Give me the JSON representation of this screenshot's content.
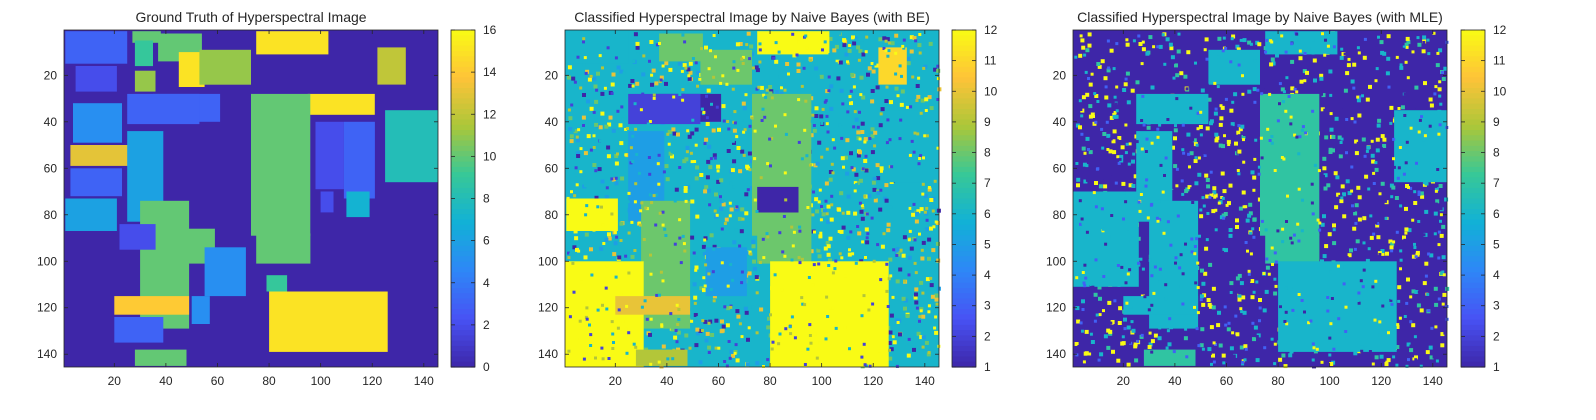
{
  "chart_data": [
    {
      "type": "heatmap",
      "title": "Ground Truth of Hyperspectral Image",
      "xlabel": "",
      "ylabel": "",
      "xlim": [
        0.5,
        145.5
      ],
      "ylim": [
        0.5,
        145.5
      ],
      "y_reversed": true,
      "xticks": [
        20,
        40,
        60,
        80,
        100,
        120,
        140
      ],
      "yticks": [
        20,
        40,
        60,
        80,
        100,
        120,
        140
      ],
      "grid": false,
      "colormap": "parula",
      "clim": [
        0,
        16
      ],
      "colorbar_ticks": [
        0,
        2,
        4,
        6,
        8,
        10,
        12,
        14,
        16
      ],
      "background_value": 0,
      "regions": [
        {
          "x": [
            1,
            24
          ],
          "y": [
            1,
            14
          ],
          "value": 3
        },
        {
          "x": [
            27,
            37
          ],
          "y": [
            1,
            5
          ],
          "value": 10
        },
        {
          "x": [
            37,
            53
          ],
          "y": [
            2,
            13
          ],
          "value": 10
        },
        {
          "x": [
            28,
            34
          ],
          "y": [
            5,
            15
          ],
          "value": 9
        },
        {
          "x": [
            45,
            54
          ],
          "y": [
            10,
            24
          ],
          "value": 15
        },
        {
          "x": [
            53,
            72
          ],
          "y": [
            9,
            23
          ],
          "value": 11
        },
        {
          "x": [
            75,
            102
          ],
          "y": [
            1,
            10
          ],
          "value": 15
        },
        {
          "x": [
            122,
            132
          ],
          "y": [
            8,
            23
          ],
          "value": 12
        },
        {
          "x": [
            5,
            20
          ],
          "y": [
            16,
            26
          ],
          "value": 2
        },
        {
          "x": [
            28,
            35
          ],
          "y": [
            18,
            26
          ],
          "value": 11
        },
        {
          "x": [
            35,
            60
          ],
          "y": [
            28,
            39
          ],
          "value": 3
        },
        {
          "x": [
            95,
            120
          ],
          "y": [
            28,
            36
          ],
          "value": 15
        },
        {
          "x": [
            4,
            22
          ],
          "y": [
            32,
            48
          ],
          "value": 5
        },
        {
          "x": [
            25,
            52
          ],
          "y": [
            28,
            40
          ],
          "value": 3
        },
        {
          "x": [
            73,
            95
          ],
          "y": [
            28,
            88
          ],
          "value": 10
        },
        {
          "x": [
            98,
            108
          ],
          "y": [
            40,
            68
          ],
          "value": 2
        },
        {
          "x": [
            109,
            120
          ],
          "y": [
            40,
            72
          ],
          "value": 3
        },
        {
          "x": [
            125,
            145
          ],
          "y": [
            35,
            65
          ],
          "value": 8
        },
        {
          "x": [
            3,
            25
          ],
          "y": [
            50,
            58
          ],
          "value": 13
        },
        {
          "x": [
            3,
            22
          ],
          "y": [
            60,
            71
          ],
          "value": 3
        },
        {
          "x": [
            25,
            38
          ],
          "y": [
            44,
            82
          ],
          "value": 6
        },
        {
          "x": [
            110,
            118
          ],
          "y": [
            70,
            80
          ],
          "value": 7
        },
        {
          "x": [
            100,
            104
          ],
          "y": [
            70,
            78
          ],
          "value": 2
        },
        {
          "x": [
            1,
            20
          ],
          "y": [
            73,
            86
          ],
          "value": 6
        },
        {
          "x": [
            30,
            48
          ],
          "y": [
            74,
            128
          ],
          "value": 10
        },
        {
          "x": [
            48,
            58
          ],
          "y": [
            86,
            100
          ],
          "value": 10
        },
        {
          "x": [
            22,
            35
          ],
          "y": [
            84,
            94
          ],
          "value": 2
        },
        {
          "x": [
            55,
            70
          ],
          "y": [
            94,
            114
          ],
          "value": 5
        },
        {
          "x": [
            75,
            95
          ],
          "y": [
            88,
            100
          ],
          "value": 10
        },
        {
          "x": [
            79,
            86
          ],
          "y": [
            106,
            112
          ],
          "value": 9
        },
        {
          "x": [
            20,
            48
          ],
          "y": [
            115,
            122
          ],
          "value": 14
        },
        {
          "x": [
            20,
            38
          ],
          "y": [
            124,
            134
          ],
          "value": 3
        },
        {
          "x": [
            50,
            56
          ],
          "y": [
            115,
            126
          ],
          "value": 5
        },
        {
          "x": [
            80,
            125
          ],
          "y": [
            113,
            138
          ],
          "value": 15
        },
        {
          "x": [
            28,
            47
          ],
          "y": [
            138,
            144
          ],
          "value": 10
        }
      ]
    },
    {
      "type": "heatmap",
      "title": "Classified Hyperspectral Image by Naive Bayes (with BE)",
      "xlabel": "",
      "ylabel": "",
      "xlim": [
        0.5,
        145.5
      ],
      "ylim": [
        0.5,
        145.5
      ],
      "y_reversed": true,
      "xticks": [
        20,
        40,
        60,
        80,
        100,
        120,
        140
      ],
      "yticks": [
        20,
        40,
        60,
        80,
        100,
        120,
        140
      ],
      "grid": false,
      "colormap": "parula",
      "clim": [
        1,
        12
      ],
      "colorbar_ticks": [
        1,
        2,
        3,
        4,
        5,
        6,
        7,
        8,
        9,
        10,
        11,
        12
      ],
      "background_value": 6,
      "regions": [
        {
          "x": [
            1,
            24
          ],
          "y": [
            1,
            14
          ],
          "value": 6
        },
        {
          "x": [
            37,
            53
          ],
          "y": [
            2,
            13
          ],
          "value": 8
        },
        {
          "x": [
            53,
            72
          ],
          "y": [
            9,
            23
          ],
          "value": 8
        },
        {
          "x": [
            75,
            102
          ],
          "y": [
            1,
            10
          ],
          "value": 12
        },
        {
          "x": [
            122,
            132
          ],
          "y": [
            8,
            23
          ],
          "value": 11
        },
        {
          "x": [
            35,
            60
          ],
          "y": [
            28,
            39
          ],
          "value": 1
        },
        {
          "x": [
            25,
            52
          ],
          "y": [
            28,
            40
          ],
          "value": 2
        },
        {
          "x": [
            73,
            95
          ],
          "y": [
            28,
            88
          ],
          "value": 8
        },
        {
          "x": [
            125,
            145
          ],
          "y": [
            35,
            65
          ],
          "value": 6
        },
        {
          "x": [
            25,
            38
          ],
          "y": [
            44,
            82
          ],
          "value": 5
        },
        {
          "x": [
            1,
            20
          ],
          "y": [
            73,
            86
          ],
          "value": 12
        },
        {
          "x": [
            30,
            48
          ],
          "y": [
            74,
            128
          ],
          "value": 8
        },
        {
          "x": [
            75,
            95
          ],
          "y": [
            88,
            100
          ],
          "value": 8
        },
        {
          "x": [
            75,
            90
          ],
          "y": [
            68,
            78
          ],
          "value": 1
        },
        {
          "x": [
            80,
            125
          ],
          "y": [
            100,
            145
          ],
          "value": 12
        },
        {
          "x": [
            0,
            30
          ],
          "y": [
            100,
            145
          ],
          "value": 12
        },
        {
          "x": [
            20,
            48
          ],
          "y": [
            115,
            122
          ],
          "value": 10
        },
        {
          "x": [
            55,
            70
          ],
          "y": [
            94,
            114
          ],
          "value": 5
        },
        {
          "x": [
            28,
            47
          ],
          "y": [
            138,
            144
          ],
          "value": 9
        }
      ]
    },
    {
      "type": "heatmap",
      "title": "Classified Hyperspectral Image by Naive Bayes (with MLE)",
      "xlabel": "",
      "ylabel": "",
      "xlim": [
        0.5,
        145.5
      ],
      "ylim": [
        0.5,
        145.5
      ],
      "y_reversed": true,
      "xticks": [
        20,
        40,
        60,
        80,
        100,
        120,
        140
      ],
      "yticks": [
        20,
        40,
        60,
        80,
        100,
        120,
        140
      ],
      "grid": false,
      "colormap": "parula",
      "clim": [
        1,
        12
      ],
      "colorbar_ticks": [
        1,
        2,
        3,
        4,
        5,
        6,
        7,
        8,
        9,
        10,
        11,
        12
      ],
      "background_value": 1,
      "regions": [
        {
          "x": [
            75,
            102
          ],
          "y": [
            1,
            10
          ],
          "value": 6
        },
        {
          "x": [
            53,
            72
          ],
          "y": [
            9,
            23
          ],
          "value": 6
        },
        {
          "x": [
            25,
            52
          ],
          "y": [
            28,
            40
          ],
          "value": 6
        },
        {
          "x": [
            73,
            95
          ],
          "y": [
            28,
            88
          ],
          "value": 7
        },
        {
          "x": [
            25,
            38
          ],
          "y": [
            44,
            82
          ],
          "value": 6
        },
        {
          "x": [
            125,
            145
          ],
          "y": [
            35,
            65
          ],
          "value": 6
        },
        {
          "x": [
            30,
            48
          ],
          "y": [
            74,
            128
          ],
          "value": 6
        },
        {
          "x": [
            75,
            95
          ],
          "y": [
            88,
            100
          ],
          "value": 7
        },
        {
          "x": [
            80,
            125
          ],
          "y": [
            100,
            138
          ],
          "value": 6
        },
        {
          "x": [
            0,
            25
          ],
          "y": [
            70,
            110
          ],
          "value": 6
        },
        {
          "x": [
            20,
            48
          ],
          "y": [
            115,
            122
          ],
          "value": 6
        },
        {
          "x": [
            28,
            47
          ],
          "y": [
            138,
            144
          ],
          "value": 7
        }
      ]
    }
  ]
}
